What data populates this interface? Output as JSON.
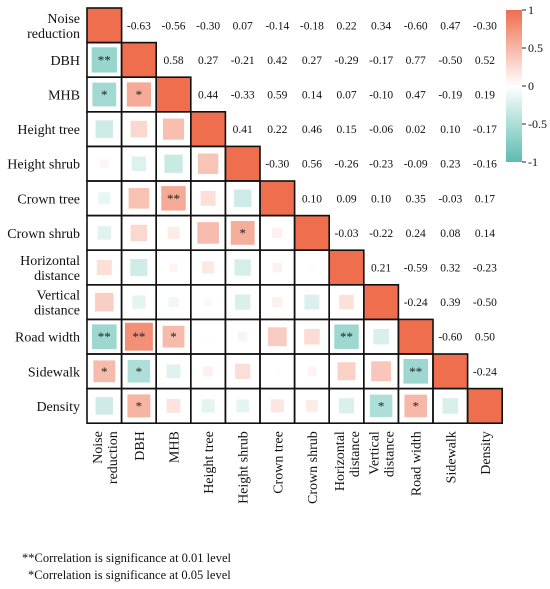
{
  "chart_data": {
    "type": "heatmap",
    "variables": [
      "Noise reduction",
      "DBH",
      "MHB",
      "Height tree",
      "Height shrub",
      "Crown tree",
      "Crown shrub",
      "Horizontal distance",
      "Vertical distance",
      "Road width",
      "Sidewalk",
      "Density"
    ],
    "row_labels": [
      [
        "Noise",
        "reduction"
      ],
      [
        "DBH"
      ],
      [
        "MHB"
      ],
      [
        "Height tree"
      ],
      [
        "Height shrub"
      ],
      [
        "Crown tree"
      ],
      [
        "Crown shrub"
      ],
      [
        "Horizontal",
        "distance"
      ],
      [
        "Vertical",
        "distance"
      ],
      [
        "Road width"
      ],
      [
        "Sidewalk"
      ],
      [
        "Density"
      ]
    ],
    "col_labels": [
      [
        "Noise",
        "reduction"
      ],
      [
        "DBH"
      ],
      [
        "MHB"
      ],
      [
        "Height tree"
      ],
      [
        "Height shrub"
      ],
      [
        "Crown tree"
      ],
      [
        "Crown shrub"
      ],
      [
        "Horizontal",
        "distance"
      ],
      [
        "Vertical",
        "distance"
      ],
      [
        "Road width"
      ],
      [
        "Sidewalk"
      ],
      [
        "Density"
      ]
    ],
    "matrix": [
      [
        1,
        -0.63,
        -0.56,
        -0.3,
        0.07,
        -0.14,
        -0.18,
        0.22,
        0.34,
        -0.6,
        0.47,
        -0.3
      ],
      [
        -0.63,
        1,
        0.58,
        0.27,
        -0.21,
        0.42,
        0.27,
        -0.29,
        -0.17,
        0.77,
        -0.5,
        0.52
      ],
      [
        -0.56,
        0.58,
        1,
        0.44,
        -0.33,
        0.59,
        0.14,
        0.07,
        -0.1,
        0.47,
        -0.19,
        0.19
      ],
      [
        -0.3,
        0.27,
        0.44,
        1,
        0.41,
        0.22,
        0.46,
        0.15,
        -0.06,
        0.02,
        0.1,
        -0.17
      ],
      [
        0.07,
        -0.21,
        -0.33,
        0.41,
        1,
        -0.3,
        0.56,
        -0.26,
        -0.23,
        -0.09,
        0.23,
        -0.16
      ],
      [
        -0.14,
        0.42,
        0.59,
        0.22,
        -0.3,
        1,
        0.1,
        0.09,
        0.1,
        0.35,
        -0.03,
        0.17
      ],
      [
        -0.18,
        0.27,
        0.14,
        0.46,
        0.56,
        0.1,
        1,
        -0.03,
        -0.22,
        0.24,
        0.08,
        0.14
      ],
      [
        0.22,
        -0.29,
        0.07,
        0.15,
        -0.26,
        0.09,
        -0.03,
        1,
        0.21,
        -0.59,
        0.32,
        -0.23
      ],
      [
        0.34,
        -0.17,
        -0.1,
        -0.06,
        -0.23,
        0.1,
        -0.22,
        0.21,
        1,
        -0.24,
        0.39,
        -0.5
      ],
      [
        -0.6,
        0.77,
        0.47,
        0.02,
        -0.09,
        0.35,
        0.24,
        -0.59,
        -0.24,
        1,
        -0.6,
        0.5
      ],
      [
        0.47,
        -0.5,
        -0.19,
        0.1,
        0.23,
        -0.03,
        0.08,
        0.32,
        0.39,
        -0.6,
        1,
        -0.24
      ],
      [
        -0.3,
        0.52,
        0.19,
        -0.17,
        -0.16,
        0.17,
        0.14,
        -0.23,
        -0.5,
        0.5,
        -0.24,
        1
      ]
    ],
    "upper_labels": [
      [
        null,
        "-0.63",
        "-0.56",
        "-0.30",
        "0.07",
        "-0.14",
        "-0.18",
        "0.22",
        "0.34",
        "-0.60",
        "0.47",
        "-0.30"
      ],
      [
        null,
        null,
        "0.58",
        "0.27",
        "-0.21",
        "0.42",
        "0.27",
        "-0.29",
        "-0.17",
        "0.77",
        "-0.50",
        "0.52"
      ],
      [
        null,
        null,
        null,
        "0.44",
        "-0.33",
        "0.59",
        "0.14",
        "0.07",
        "-0.10",
        "0.47",
        "-0.19",
        "0.19"
      ],
      [
        null,
        null,
        null,
        null,
        "0.41",
        "0.22",
        "0.46",
        "0.15",
        "-0.06",
        "0.02",
        "0.10",
        "-0.17"
      ],
      [
        null,
        null,
        null,
        null,
        null,
        "-0.30",
        "0.56",
        "-0.26",
        "-0.23",
        "-0.09",
        "0.23",
        "-0.16"
      ],
      [
        null,
        null,
        null,
        null,
        null,
        null,
        "0.10",
        "0.09",
        "0.10",
        "0.35",
        "-0.03",
        "0.17"
      ],
      [
        null,
        null,
        null,
        null,
        null,
        null,
        null,
        "-0.03",
        "-0.22",
        "0.24",
        "0.08",
        "0.14"
      ],
      [
        null,
        null,
        null,
        null,
        null,
        null,
        null,
        null,
        "0.21",
        "-0.59",
        "0.32",
        "-0.23"
      ],
      [
        null,
        null,
        null,
        null,
        null,
        null,
        null,
        null,
        null,
        "-0.24",
        "0.39",
        "-0.50"
      ],
      [
        null,
        null,
        null,
        null,
        null,
        null,
        null,
        null,
        null,
        null,
        "-0.60",
        "0.50"
      ],
      [
        null,
        null,
        null,
        null,
        null,
        null,
        null,
        null,
        null,
        null,
        null,
        "-0.24"
      ],
      [
        null,
        null,
        null,
        null,
        null,
        null,
        null,
        null,
        null,
        null,
        null,
        null
      ]
    ],
    "significance": [
      {
        "row": 1,
        "col": 0,
        "mark": "**"
      },
      {
        "row": 2,
        "col": 0,
        "mark": "*"
      },
      {
        "row": 2,
        "col": 1,
        "mark": "*"
      },
      {
        "row": 5,
        "col": 2,
        "mark": "**"
      },
      {
        "row": 6,
        "col": 4,
        "mark": "*"
      },
      {
        "row": 9,
        "col": 0,
        "mark": "**"
      },
      {
        "row": 9,
        "col": 1,
        "mark": "**"
      },
      {
        "row": 9,
        "col": 2,
        "mark": "*"
      },
      {
        "row": 9,
        "col": 7,
        "mark": "**"
      },
      {
        "row": 10,
        "col": 0,
        "mark": "*"
      },
      {
        "row": 10,
        "col": 1,
        "mark": "*"
      },
      {
        "row": 10,
        "col": 9,
        "mark": "**"
      },
      {
        "row": 11,
        "col": 1,
        "mark": "*"
      },
      {
        "row": 11,
        "col": 8,
        "mark": "*"
      },
      {
        "row": 11,
        "col": 9,
        "mark": "*"
      }
    ],
    "colorbar": {
      "range": [
        -1,
        1
      ],
      "ticks": [
        "1",
        "0.5",
        "0",
        "-0.5",
        "-1"
      ],
      "colors": {
        "negative": "#5bbcb0",
        "zero": "#ffffff",
        "positive": "#ee6e4e"
      }
    },
    "notes": [
      "**Correlation is significance at 0.01 level",
      "*Correlation is significance at 0.05 level"
    ]
  }
}
